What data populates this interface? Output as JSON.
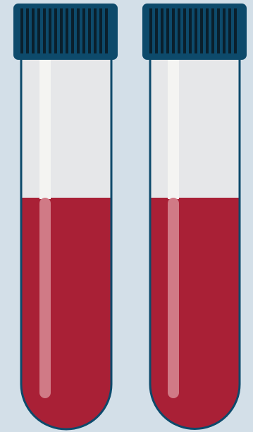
{
  "illustration": {
    "subject": "blood-sample-tubes",
    "tube_count": 2,
    "fill_level_fraction": 0.62,
    "icons": [
      "tube-cap-icon",
      "test-tube-icon"
    ]
  },
  "colors": {
    "background": "#d3dfe8",
    "cap": "#0d4a6b",
    "cap_ridge": "#0a1f2c",
    "outline": "#0d4a6b",
    "glass_empty": "#e6e7e9",
    "blood": "#a92036",
    "highlight_on_glass": "#f4f4f2",
    "highlight_on_blood": "#d07a86"
  }
}
